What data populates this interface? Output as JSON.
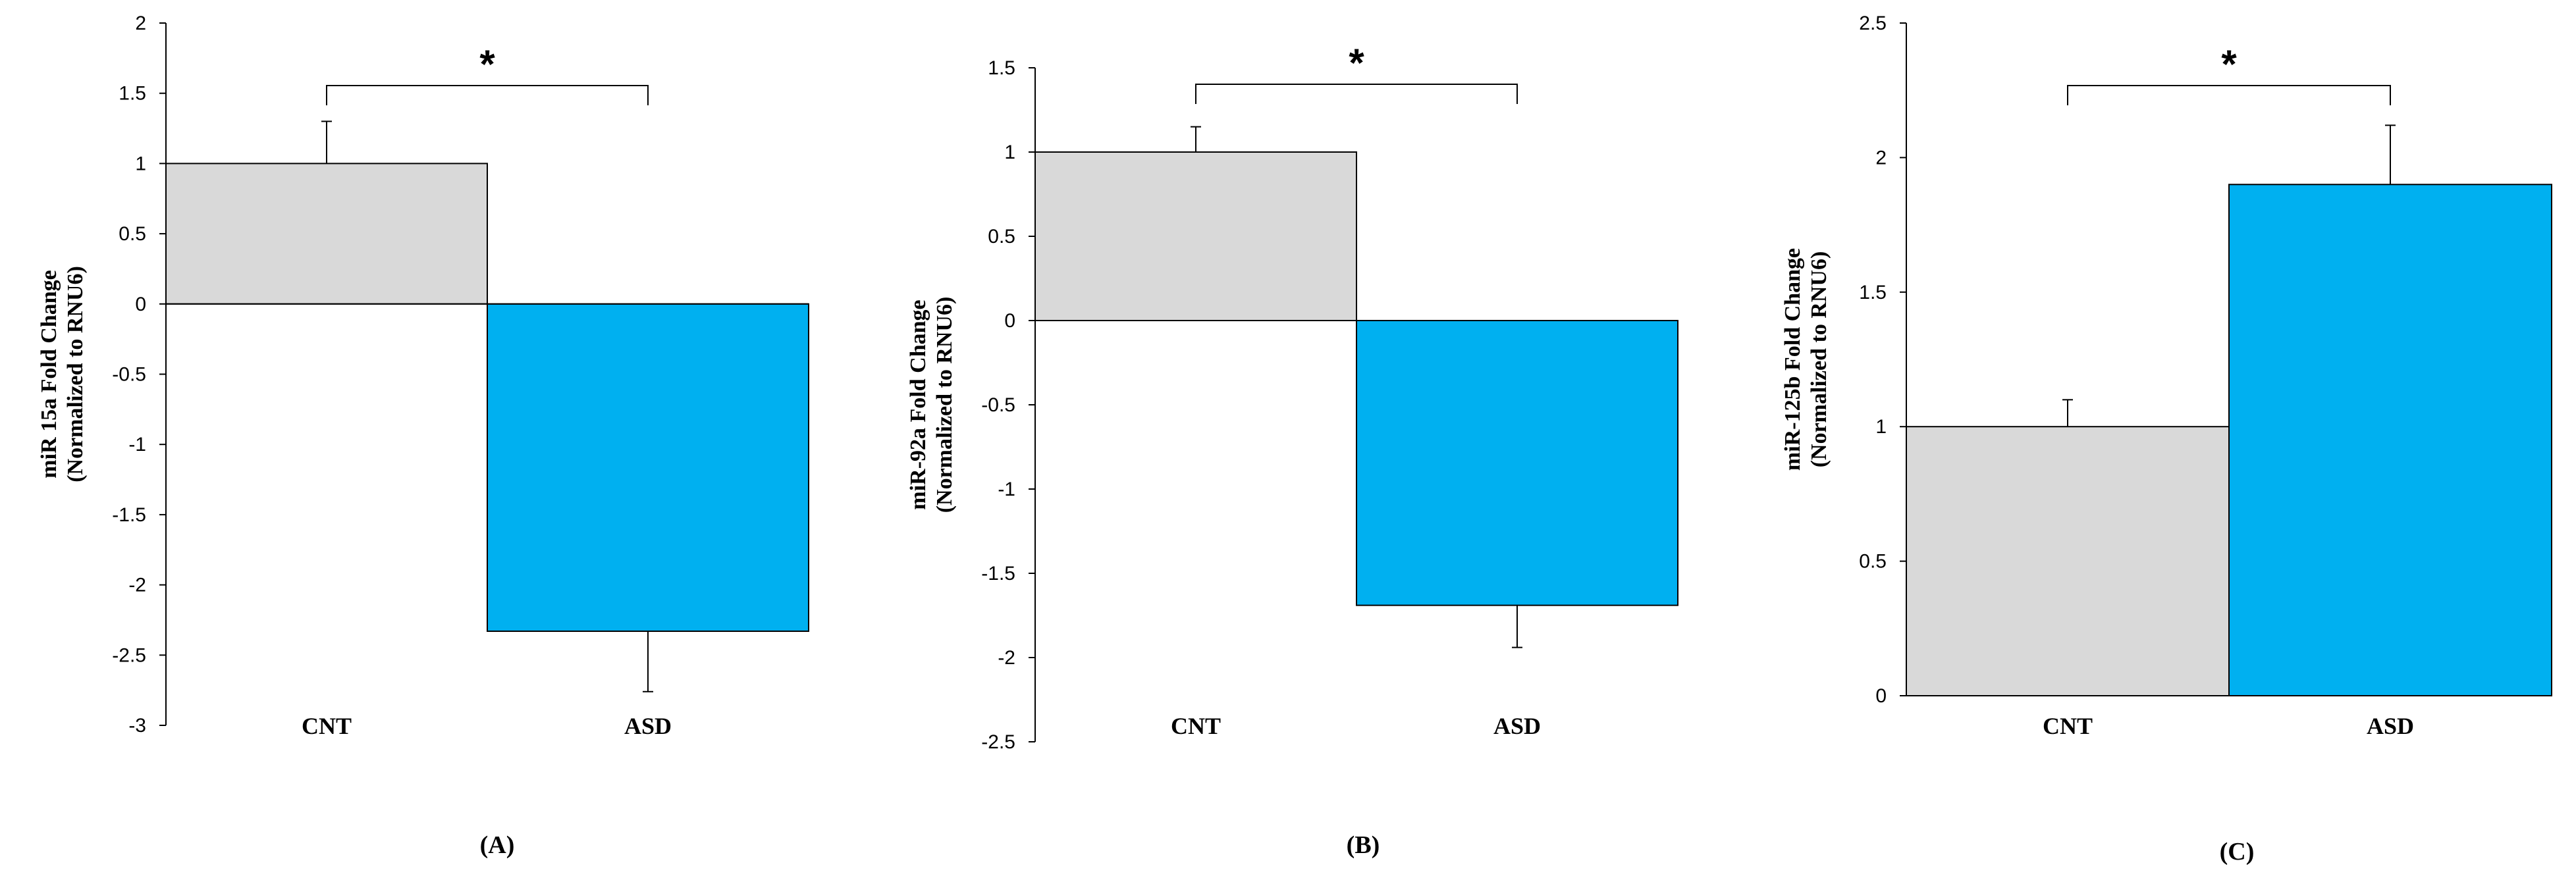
{
  "colors": {
    "cnt_bar": "#d9d9d9",
    "asd_bar": "#00b0f0",
    "line": "#000000"
  },
  "chart_data": [
    {
      "type": "bar",
      "categories": [
        "CNT",
        "ASD"
      ],
      "values": [
        1.0,
        -2.33
      ],
      "errors": [
        0.3,
        0.43
      ],
      "ylabel_lines": [
        "miR 15a Fold Change",
        "(Normalized to RNU6)"
      ],
      "ylim": [
        -3,
        2
      ],
      "yticks": [
        -3,
        -2.5,
        -2,
        -1.5,
        -1,
        -0.5,
        0,
        0.5,
        1,
        1.5,
        2
      ],
      "significance": "*",
      "panel_label": "(A)",
      "grid": false
    },
    {
      "type": "bar",
      "categories": [
        "CNT",
        "ASD"
      ],
      "values": [
        1.0,
        -1.69
      ],
      "errors": [
        0.15,
        0.25
      ],
      "ylabel_lines": [
        "miR-92a Fold Change",
        "(Normalized to RNU6)"
      ],
      "ylim": [
        -2.5,
        1.5
      ],
      "yticks": [
        -2.5,
        -2,
        -1.5,
        -1,
        -0.5,
        0,
        0.5,
        1,
        1.5
      ],
      "significance": "*",
      "panel_label": "(B)",
      "grid": false
    },
    {
      "type": "bar",
      "categories": [
        "CNT",
        "ASD"
      ],
      "values": [
        1.0,
        1.9
      ],
      "errors": [
        0.1,
        0.22
      ],
      "ylabel_lines": [
        "miR-125b Fold Change",
        "(Normalized to RNU6)"
      ],
      "ylim": [
        0,
        2.5
      ],
      "yticks": [
        0,
        0.5,
        1,
        1.5,
        2,
        2.5
      ],
      "significance": "*",
      "panel_label": "(C)",
      "grid": false
    }
  ]
}
